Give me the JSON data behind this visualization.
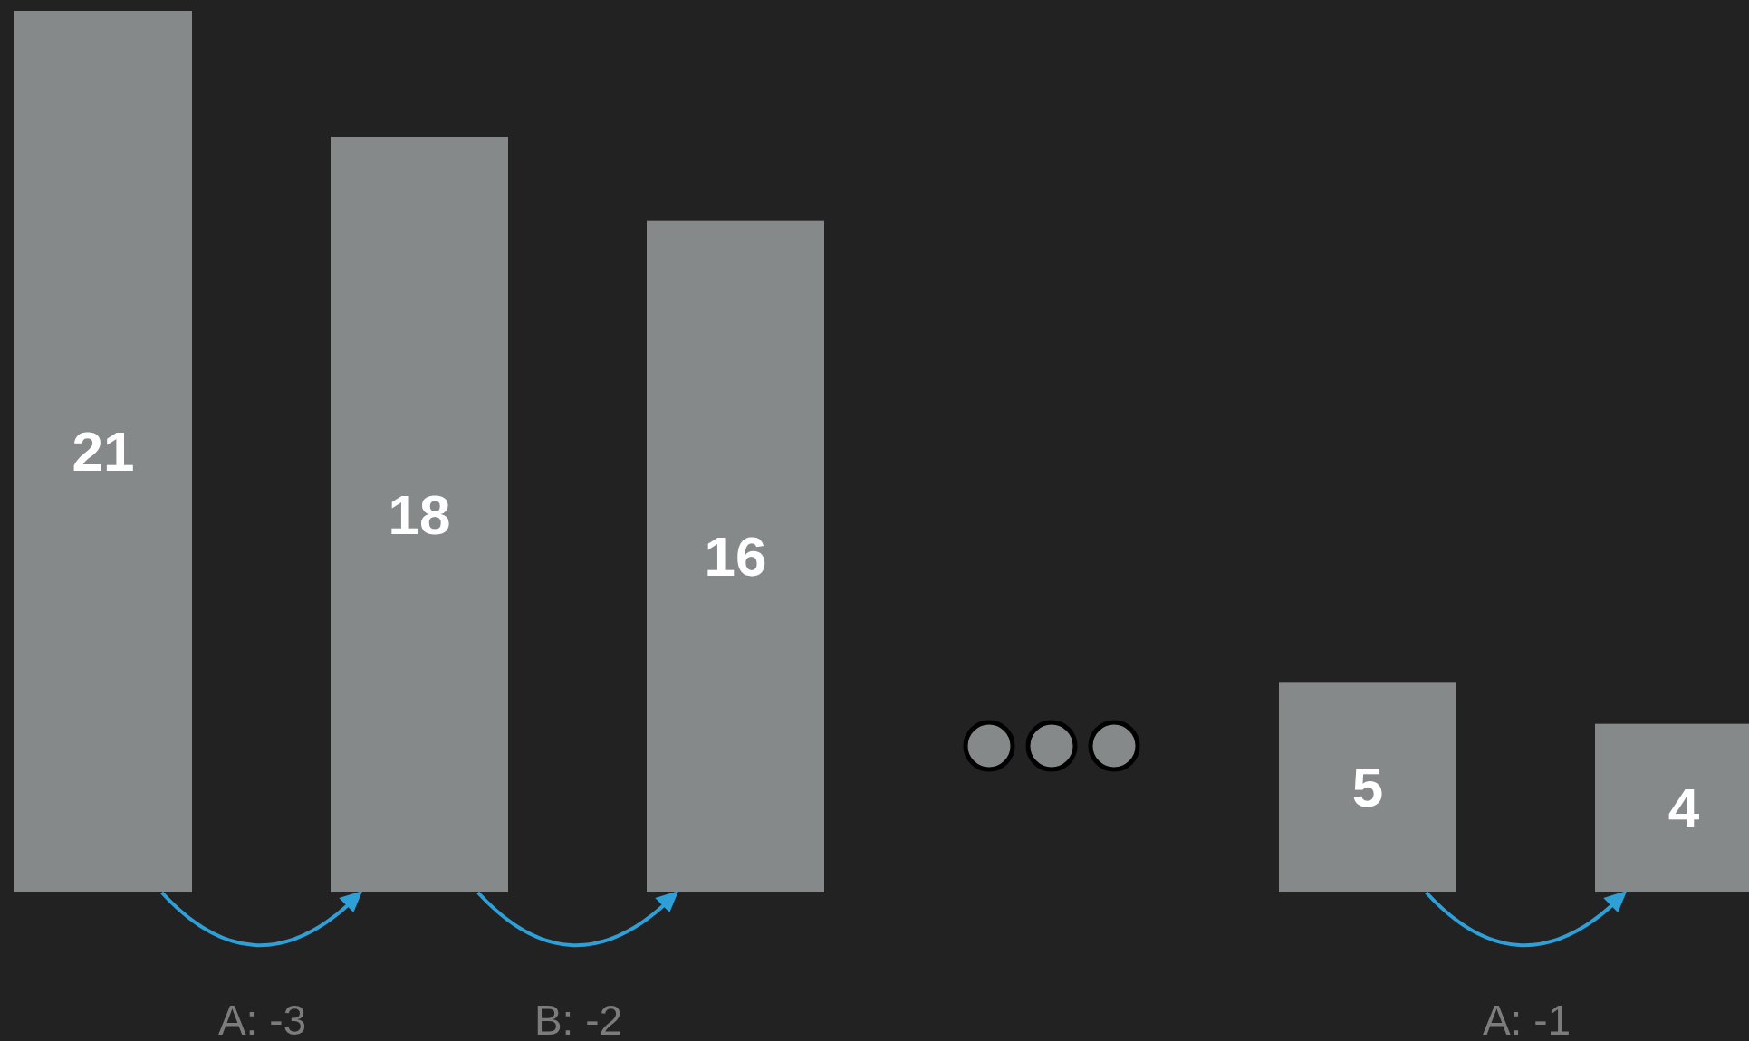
{
  "chart_data": {
    "type": "bar",
    "categories": [
      null,
      null,
      null,
      null,
      null
    ],
    "values": [
      21,
      18,
      16,
      5,
      4
    ],
    "color": "#868989",
    "data_labels": true,
    "annotations": [
      "A: -3",
      "B: -2",
      "A: -1"
    ]
  }
}
